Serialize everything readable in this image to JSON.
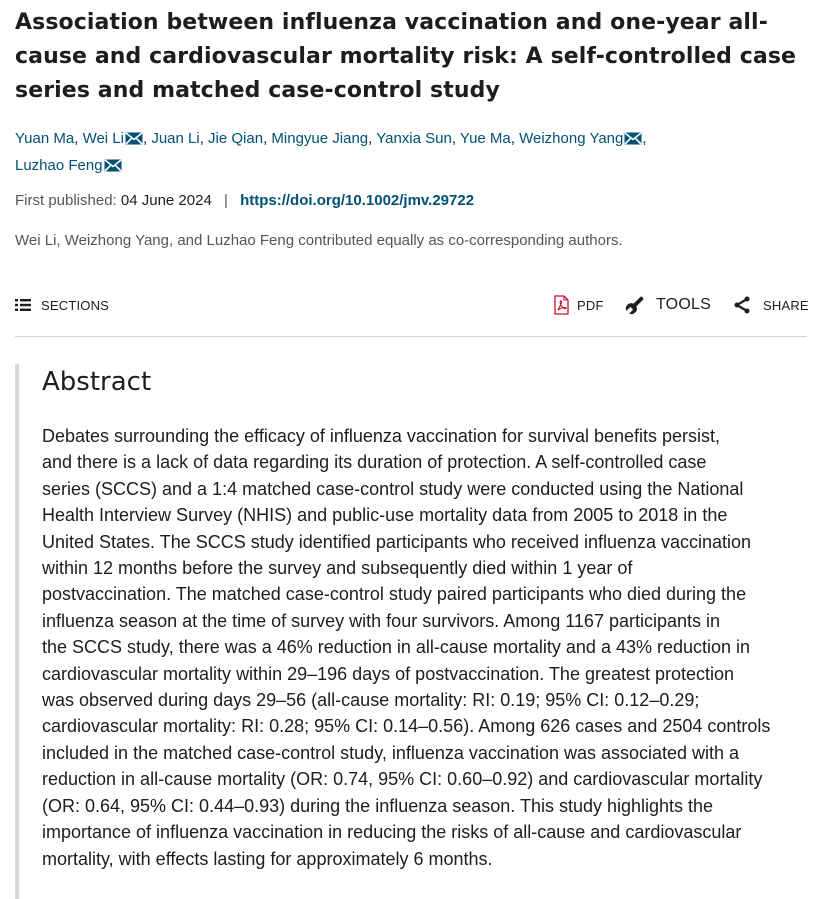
{
  "article": {
    "title_lines": [
      "Association between influenza vaccination and one-year all-",
      "cause and cardiovascular mortality risk: A self-controlled case",
      "series and matched case-control study"
    ],
    "authors": [
      {
        "name": "Yuan Ma",
        "corresponding": false
      },
      {
        "name": "Wei Li",
        "corresponding": true
      },
      {
        "name": "Juan Li",
        "corresponding": false
      },
      {
        "name": "Jie Qian",
        "corresponding": false
      },
      {
        "name": "Mingyue Jiang",
        "corresponding": false
      },
      {
        "name": "Yanxia Sun",
        "corresponding": false
      },
      {
        "name": "Yue Ma",
        "corresponding": false
      },
      {
        "name": "Weizhong Yang",
        "corresponding": true
      },
      {
        "name": "Luzhao Feng",
        "corresponding": true
      }
    ],
    "first_published_label": "First published:",
    "first_published_date": "04 June 2024",
    "separator": "|",
    "doi": "https://doi.org/10.1002/jmv.29722",
    "note": "Wei Li, Weizhong Yang, and Luzhao Feng contributed equally as co-corresponding authors."
  },
  "toolbar": {
    "sections": "SECTIONS",
    "pdf": "PDF",
    "tools": "TOOLS",
    "share": "SHARE"
  },
  "icons": {
    "sections": "list-icon",
    "pdf": "pdf-icon",
    "tools": "wrench-icon",
    "share": "share-icon",
    "mail": "envelope-icon"
  },
  "colors": {
    "link": "#005274",
    "text": "#1c1d1e",
    "muted": "#555555",
    "pdf_red": "#c8102e"
  },
  "abstract": {
    "heading": "Abstract",
    "lines": [
      "Debates surrounding the efficacy of influenza vaccination for survival benefits persist,",
      "and there is a lack of data regarding its duration of protection. A self-controlled case",
      "series (SCCS) and a 1:4 matched case-control study were conducted using the National",
      "Health Interview Survey (NHIS) and public-use mortality data from 2005 to 2018 in the",
      "United States. The SCCS study identified participants who received influenza vaccination",
      "within 12 months before the survey and subsequently died within 1 year of",
      "postvaccination. The matched case-control study paired participants who died during the",
      "influenza season at the time of survey with four survivors. Among 1167 participants in",
      "the SCCS study, there was a 46% reduction in all-cause mortality and a 43% reduction in",
      "cardiovascular mortality within 29–196 days of postvaccination. The greatest protection",
      "was observed during days 29–56 (all-cause mortality: RI: 0.19; 95% CI: 0.12–0.29;",
      "cardiovascular mortality: RI: 0.28; 95% CI: 0.14–0.56). Among 626 cases and 2504 controls",
      "included in the matched case-control study, influenza vaccination was associated with a",
      "reduction in all-cause mortality (OR: 0.74, 95% CI: 0.60–0.92) and cardiovascular mortality",
      "(OR: 0.64, 95% CI: 0.44–0.93) during the influenza season. This study highlights the",
      "importance of influenza vaccination in reducing the risks of all-cause and cardiovascular",
      "mortality, with effects lasting for approximately 6 months."
    ]
  }
}
